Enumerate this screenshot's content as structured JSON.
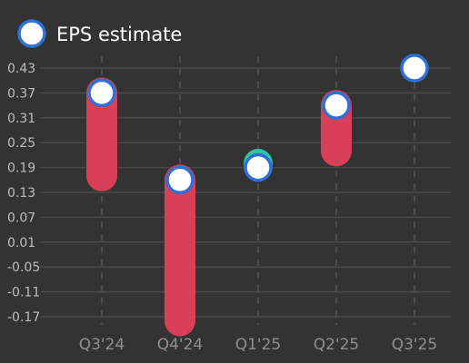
{
  "legend": {
    "label": "EPS estimate"
  },
  "colors": {
    "background": "#333333",
    "grid": "#4a4a4a",
    "vgrid": "#555555",
    "tick_text": "#bdbdbd",
    "cat_text": "#8f8f8f",
    "miss_bar": "#d93f58",
    "beat_color": "#2ec4a0",
    "estimate_fill": "#ffffff",
    "estimate_stroke": "#2f6fd6",
    "legend_text": "#ffffff"
  },
  "chart_data": {
    "type": "range-dot",
    "categories": [
      "Q3'24",
      "Q4'24",
      "Q1'25",
      "Q2'25",
      "Q3'25"
    ],
    "y_ticks": [
      "0.43",
      "0.37",
      "0.31",
      "0.25",
      "0.19",
      "0.13",
      "0.07",
      "0.01",
      "-0.05",
      "-0.11",
      "-0.17"
    ],
    "ylim": [
      -0.17,
      0.43
    ],
    "grid": true,
    "legend_position": "top-left",
    "series": [
      {
        "name": "EPS estimate",
        "values": [
          0.37,
          0.16,
          0.19,
          0.34,
          0.43
        ]
      }
    ],
    "actual": [
      0.17,
      -0.18,
      0.2,
      0.23,
      null
    ],
    "outcome": [
      "miss",
      "miss",
      "beat",
      "miss",
      null
    ]
  }
}
